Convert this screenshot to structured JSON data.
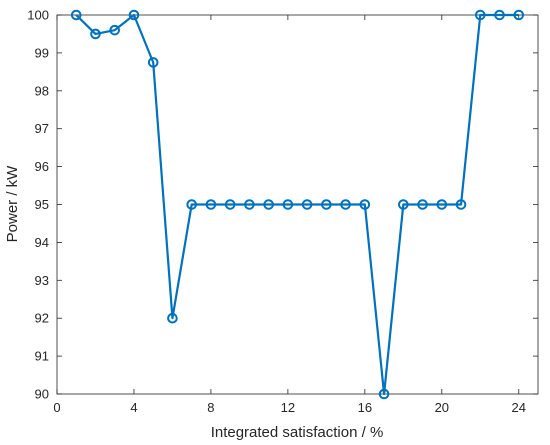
{
  "chart_data": {
    "type": "line",
    "title": "",
    "xlabel": "Integrated satisfaction / %",
    "ylabel": "Power / kW",
    "xlim": [
      0,
      25
    ],
    "ylim": [
      90,
      100
    ],
    "xticks": [
      0,
      4,
      8,
      12,
      16,
      20,
      24
    ],
    "yticks": [
      90,
      91,
      92,
      93,
      94,
      95,
      96,
      97,
      98,
      99,
      100
    ],
    "grid": false,
    "line_color": "#0072BD",
    "marker": "circle",
    "series": [
      {
        "x": [
          1,
          2,
          3,
          4,
          5,
          6,
          7,
          8,
          9,
          10,
          11,
          12,
          13,
          14,
          15,
          16,
          17,
          18,
          19,
          20,
          21,
          22,
          23,
          24
        ],
        "values": [
          100,
          99.5,
          99.6,
          100,
          98.75,
          92,
          95,
          95,
          95,
          95,
          95,
          95,
          95,
          95,
          95,
          95,
          90,
          95,
          95,
          95,
          95,
          100,
          100,
          100
        ]
      }
    ]
  }
}
